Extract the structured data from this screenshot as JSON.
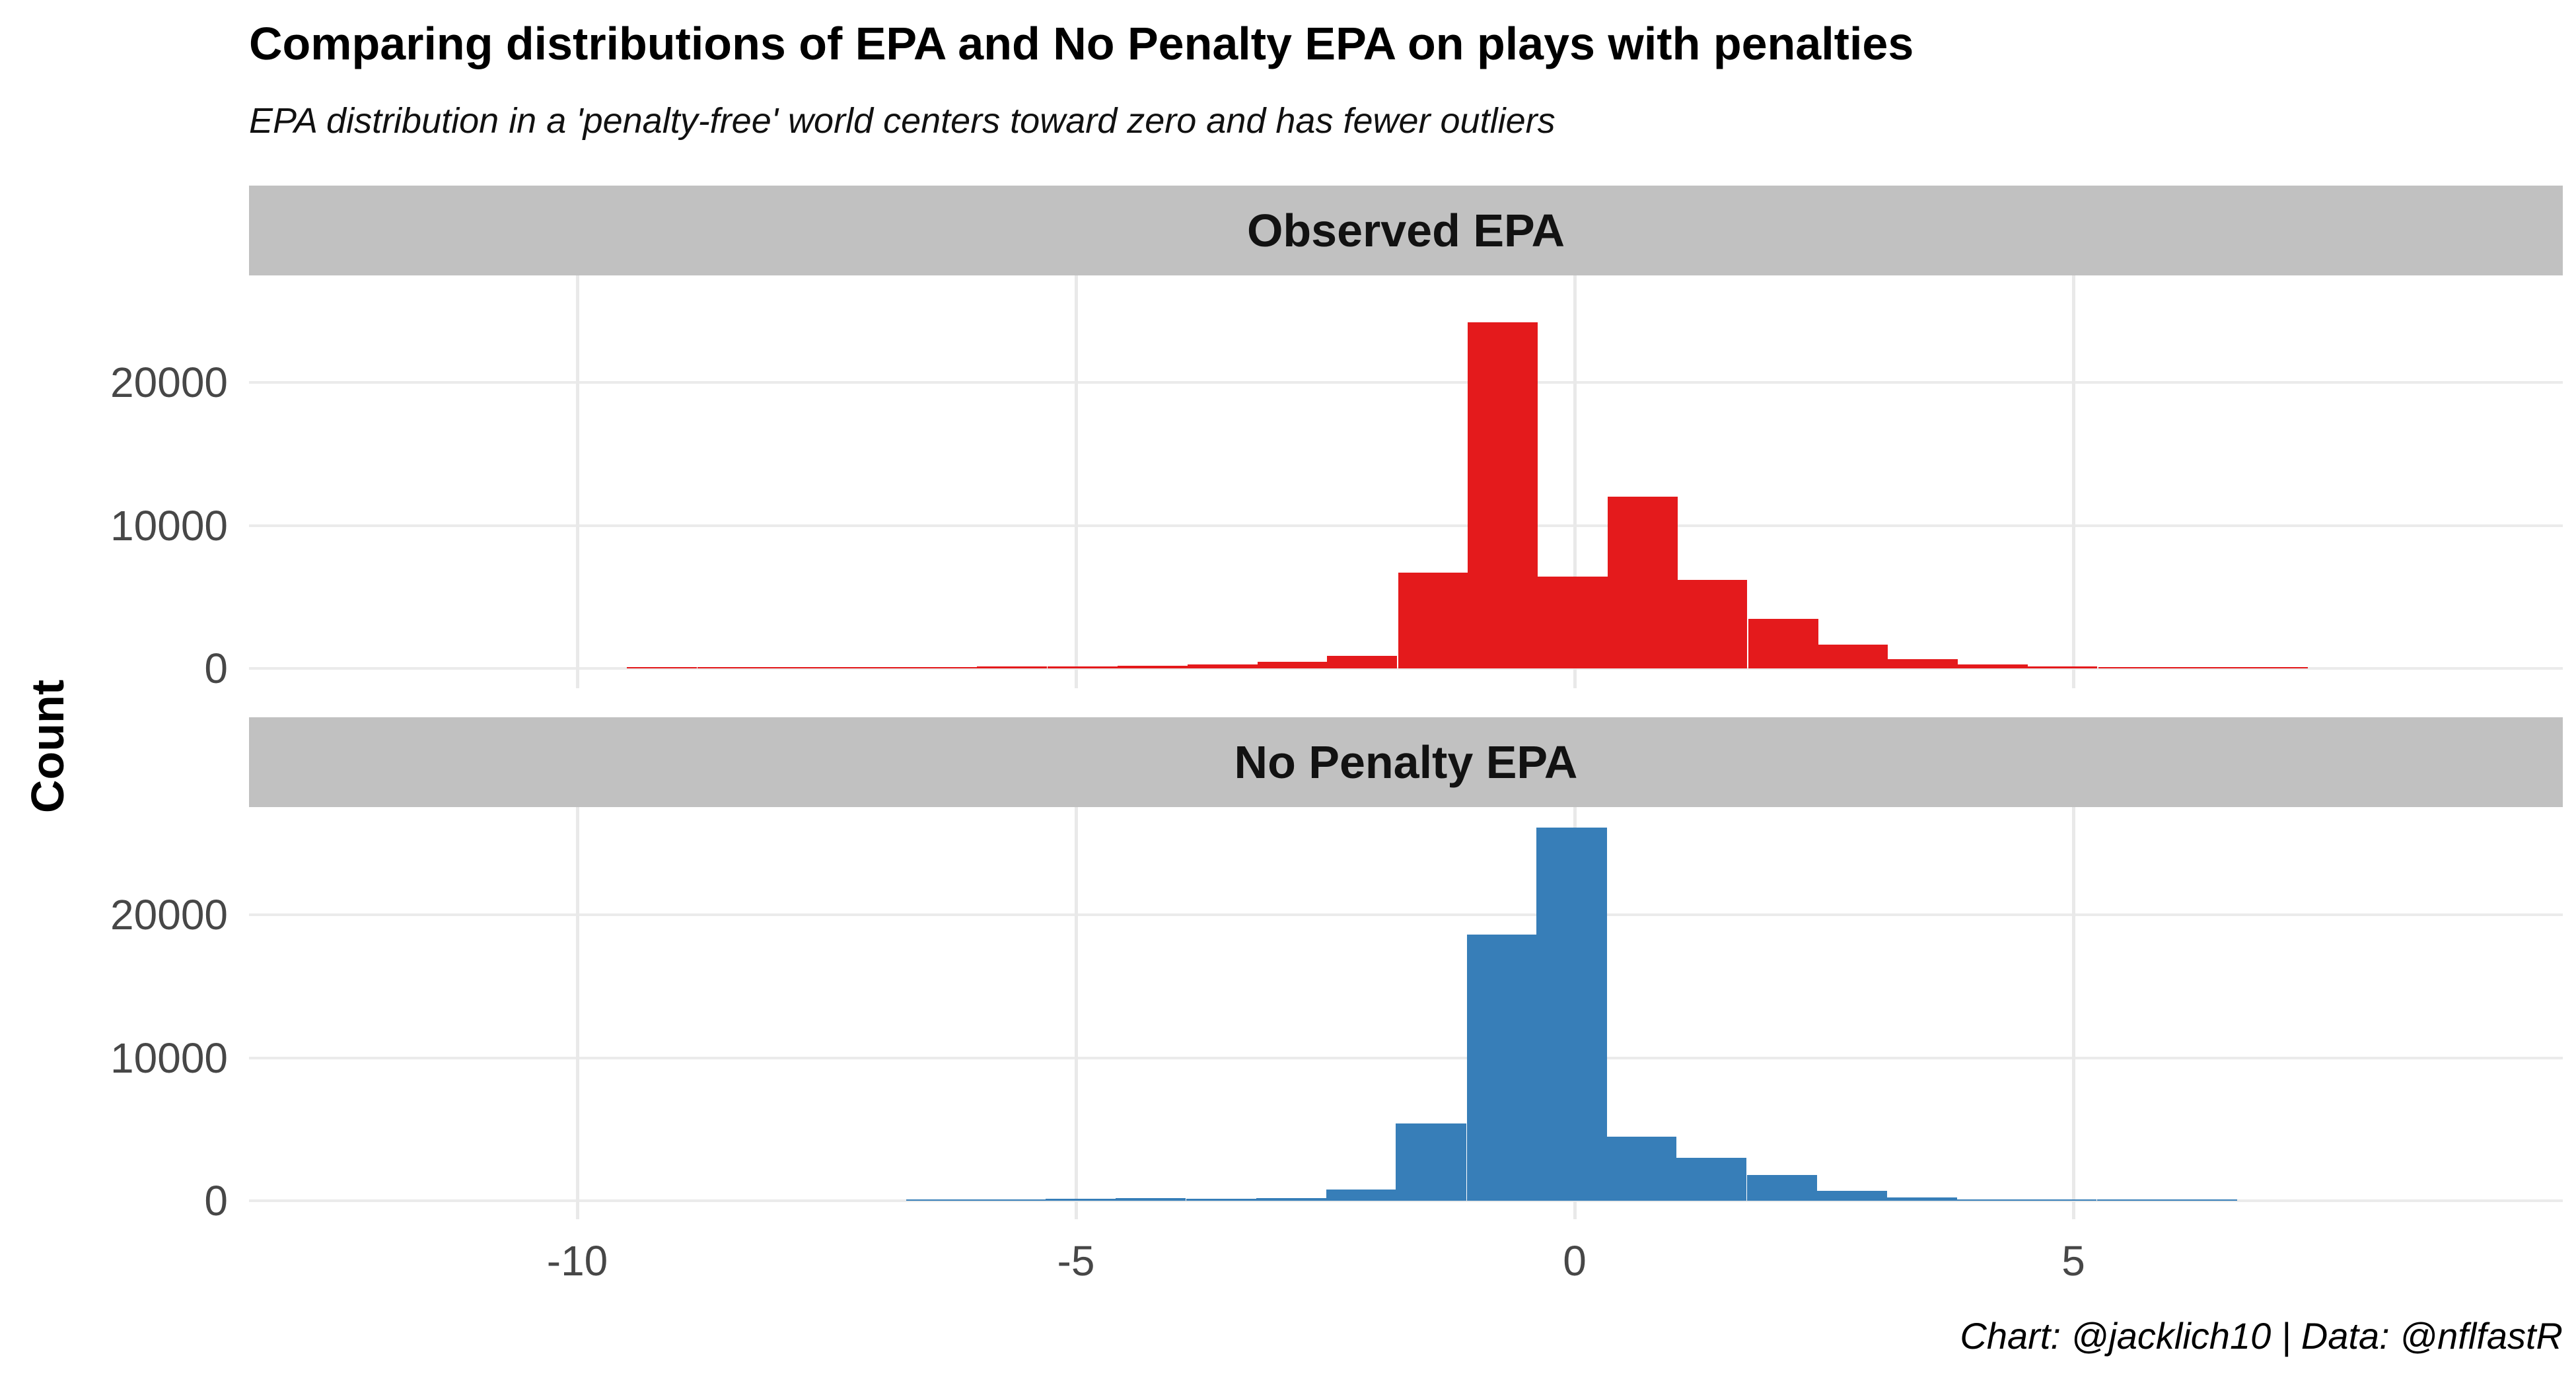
{
  "title": "Comparing distributions of EPA and No Penalty EPA on plays with penalties",
  "subtitle": "EPA distribution in a 'penalty-free' world centers toward zero and has fewer outliers",
  "caption": "Chart: @jacklich10 | Data: @nflfastR",
  "y_axis_title": "Count",
  "colors": {
    "observed_epa_fill": "#E41A1C",
    "no_penalty_epa_fill": "#377EB8",
    "strip_background": "#C1C1C1",
    "gridline": "#EBEBEB",
    "axis_text": "#474747",
    "text": "#000000",
    "panel_background": "#FFFFFF"
  },
  "x_axis": {
    "tick_labels": [
      "-10",
      "-5",
      "0",
      "5"
    ],
    "tick_values": [
      -10,
      -5,
      0,
      5
    ],
    "domain": [
      -13.3,
      9.9
    ]
  },
  "y_axis": {
    "tick_labels": [
      "20000",
      "10000",
      "0"
    ],
    "tick_values": [
      20000,
      10000,
      0
    ],
    "domain": [
      0,
      27400
    ]
  },
  "chart_data": [
    {
      "type": "bar",
      "subtype": "histogram",
      "facet_label": "Observed EPA",
      "fill": "#E41A1C",
      "binwidth": 0.703,
      "xlabel": "",
      "ylabel": "Count",
      "ylim": [
        0,
        27400
      ],
      "xlim": [
        -13.3,
        9.9
      ],
      "grid": "major-only",
      "legend": "none",
      "bin_centers_epa": [
        -9.15,
        -8.44,
        -7.74,
        -7.04,
        -6.34,
        -5.64,
        -4.93,
        -4.23,
        -3.53,
        -2.83,
        -2.13,
        -1.42,
        -0.72,
        -0.02,
        0.68,
        1.38,
        2.09,
        2.79,
        3.49,
        4.19,
        4.89,
        5.6,
        6.3,
        7.0
      ],
      "counts": [
        60,
        60,
        60,
        70,
        80,
        120,
        120,
        180,
        300,
        450,
        900,
        6700,
        24200,
        6400,
        12000,
        6200,
        3450,
        1650,
        650,
        300,
        150,
        100,
        80,
        60
      ]
    },
    {
      "type": "bar",
      "subtype": "histogram",
      "facet_label": "No Penalty EPA",
      "fill": "#377EB8",
      "binwidth": 0.703,
      "xlabel": "",
      "ylabel": "Count",
      "ylim": [
        0,
        27400
      ],
      "xlim": [
        -13.3,
        9.9
      ],
      "grid": "major-only",
      "legend": "none",
      "bin_centers_epa": [
        -6.35,
        -5.65,
        -4.95,
        -4.25,
        -3.54,
        -2.84,
        -2.14,
        -1.44,
        -0.73,
        -0.03,
        0.67,
        1.37,
        2.08,
        2.78,
        3.48,
        4.18,
        4.88,
        5.59,
        6.29
      ],
      "counts": [
        70,
        100,
        150,
        200,
        160,
        200,
        800,
        5400,
        18600,
        26100,
        4500,
        3000,
        1800,
        700,
        250,
        100,
        80,
        60,
        50
      ]
    }
  ]
}
